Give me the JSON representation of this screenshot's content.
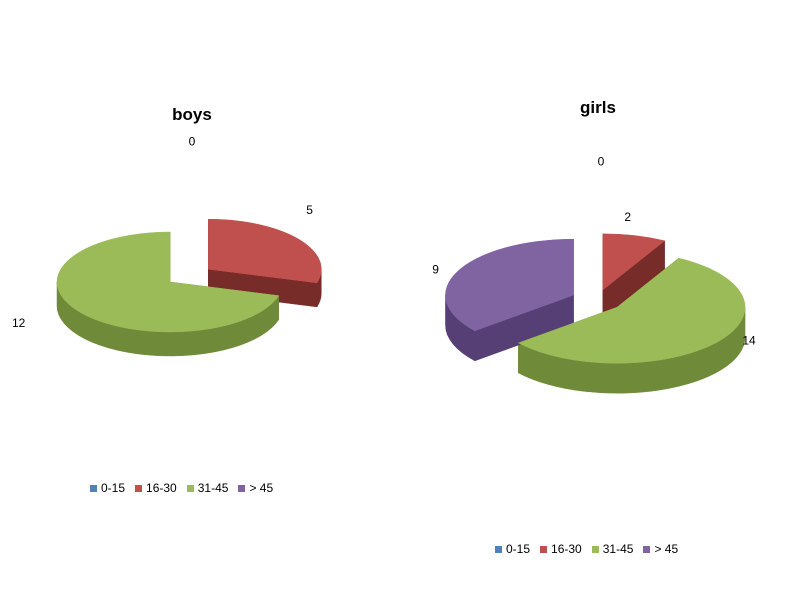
{
  "chart_data": [
    {
      "type": "pie",
      "title": "boys",
      "categories": [
        "0-15",
        "16-30",
        "31-45",
        "> 45"
      ],
      "values": [
        0,
        5,
        12,
        0
      ],
      "data_labels": [
        "0",
        "5",
        "12",
        ""
      ],
      "legend": [
        "0-15",
        "16-30",
        "31-45",
        "> 45"
      ],
      "legend_position": "bottom",
      "three_d": true,
      "exploded": true
    },
    {
      "type": "pie",
      "title": "girls",
      "categories": [
        "0-15",
        "16-30",
        "31-45",
        "> 45"
      ],
      "values": [
        0,
        2,
        14,
        9
      ],
      "data_labels": [
        "0",
        "2",
        "14",
        "9"
      ],
      "legend": [
        "0-15",
        "16-30",
        "31-45",
        "> 45"
      ],
      "legend_position": "bottom",
      "three_d": true,
      "exploded": true
    }
  ],
  "colors": {
    "0-15": {
      "top": "#4f81bd",
      "side": "#385d8a"
    },
    "16-30": {
      "top": "#c0504d",
      "side": "#772c2a"
    },
    "31-45": {
      "top": "#9bbb59",
      "side": "#6f8b3a"
    },
    "> 45": {
      "top": "#8064a2",
      "side": "#553f74"
    }
  }
}
